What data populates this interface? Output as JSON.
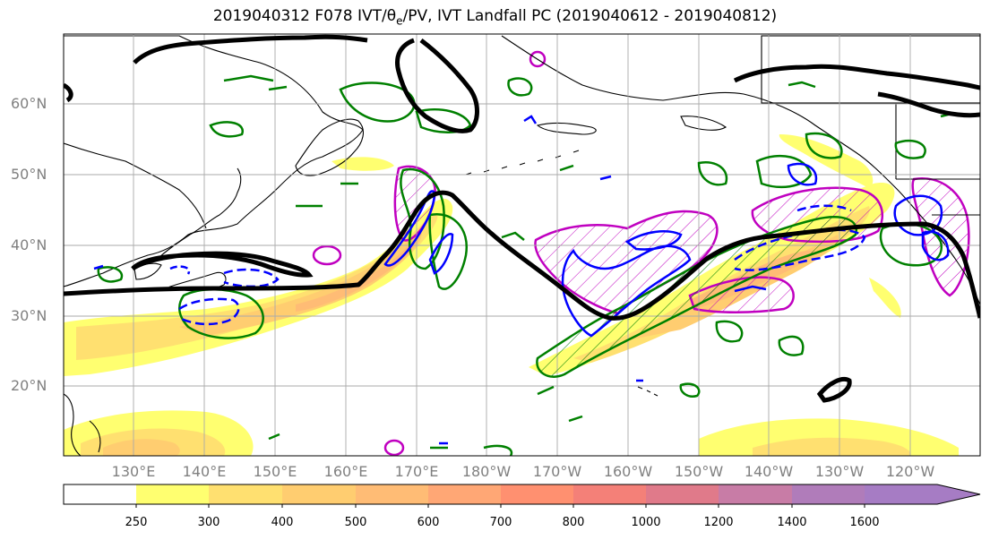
{
  "title": "2019040312 F078 IVT/θe/PV, IVT Landfall PC (2019040612 - 2019040812)",
  "title_parts": {
    "prefix": "2019040312 F078 IVT/θ",
    "subscript": "e",
    "suffix": "/PV, IVT Landfall PC (2019040612 - 2019040812)"
  },
  "map": {
    "lat_labels": [
      "60°N",
      "50°N",
      "40°N",
      "30°N",
      "20°N"
    ],
    "lon_labels": [
      "130°E",
      "140°E",
      "150°E",
      "160°E",
      "170°E",
      "180°W",
      "170°W",
      "160°W",
      "150°W",
      "140°W",
      "130°W",
      "120°W"
    ],
    "gridlines": true,
    "colors": {
      "ivt_contour": "#000000",
      "theta_e_contour": "#0000ff",
      "pv_contour": "#008000",
      "landfall_pc": "#c000c0",
      "coastline": "#000000"
    }
  },
  "colorbar": {
    "ticks": [
      "250",
      "300",
      "400",
      "500",
      "600",
      "700",
      "800",
      "1000",
      "1200",
      "1400",
      "1600"
    ],
    "colors": [
      "#ffffff",
      "#ffff70",
      "#ffe070",
      "#ffcd70",
      "#ffbc75",
      "#ffa775",
      "#ff9070",
      "#f48078",
      "#e07a8a",
      "#c87ca6",
      "#a67cc4"
    ],
    "extend": "max"
  }
}
